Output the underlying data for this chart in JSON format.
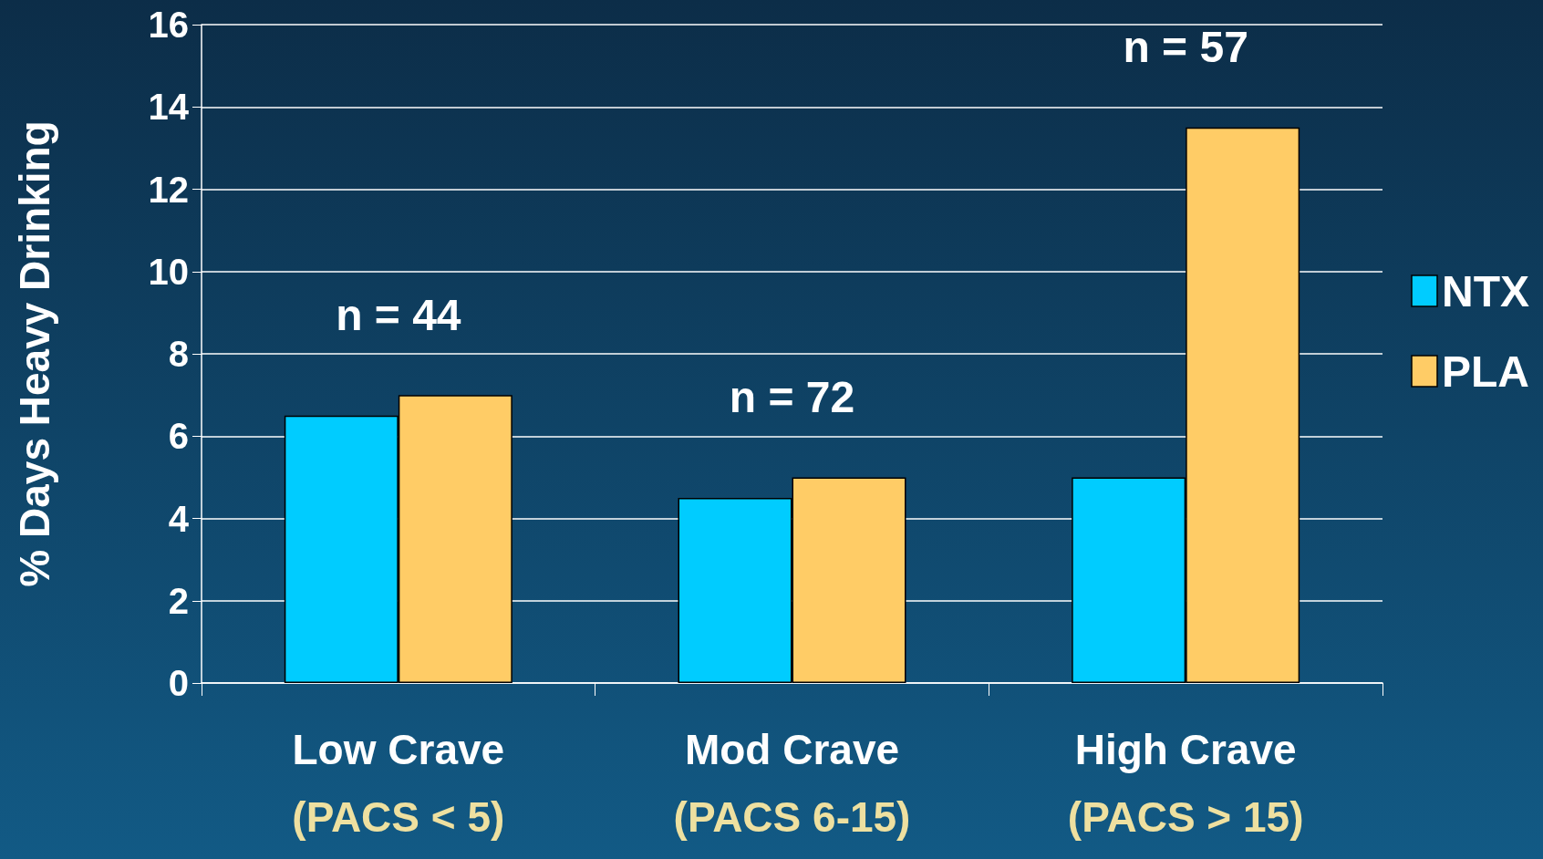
{
  "chart_data": {
    "type": "bar",
    "ylabel": "% Days Heavy Drinking",
    "categories": [
      "Low Crave\n(PACS < 5)",
      "Mod Crave\n(PACS 6-15)",
      "High Crave\n(PACS > 15)"
    ],
    "series": [
      {
        "name": "NTX",
        "color": "#00ccff",
        "values": [
          6.5,
          4.5,
          5.0
        ]
      },
      {
        "name": "PLA",
        "color": "#ffcc66",
        "values": [
          7.0,
          5.0,
          13.5
        ]
      }
    ],
    "ylim": [
      0,
      16
    ],
    "yticks": [
      0,
      2,
      4,
      6,
      8,
      10,
      12,
      14,
      16
    ],
    "grid": "y",
    "legend": "right",
    "annotations": [
      "n = 44",
      "n = 72",
      "n = 57"
    ]
  }
}
